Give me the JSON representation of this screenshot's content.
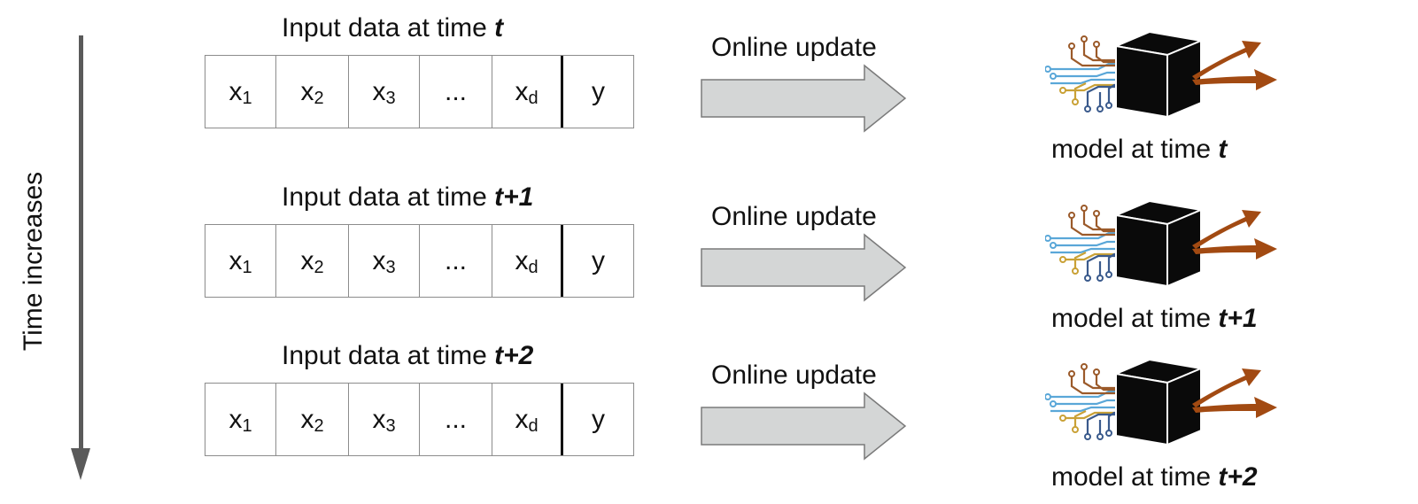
{
  "axis": {
    "label": "Time increases"
  },
  "rows": [
    {
      "title_prefix": "Input data at time ",
      "time": "t",
      "cells": [
        "x",
        "x",
        "x",
        "...",
        "x",
        "y"
      ],
      "subs": [
        "1",
        "2",
        "3",
        "",
        "d",
        ""
      ],
      "update_label": "Online update",
      "model_prefix": "model at time ",
      "model_time": "t"
    },
    {
      "title_prefix": "Input data at time ",
      "time": "t+1",
      "cells": [
        "x",
        "x",
        "x",
        "...",
        "x",
        "y"
      ],
      "subs": [
        "1",
        "2",
        "3",
        "",
        "d",
        ""
      ],
      "update_label": "Online update",
      "model_prefix": "model at time ",
      "model_time": "t+1"
    },
    {
      "title_prefix": "Input data at time ",
      "time": "t+2",
      "cells": [
        "x",
        "x",
        "x",
        "...",
        "x",
        "y"
      ],
      "subs": [
        "1",
        "2",
        "3",
        "",
        "d",
        ""
      ],
      "update_label": "Online update",
      "model_prefix": "model at time ",
      "model_time": "t+2"
    }
  ],
  "colors": {
    "arrow_fill": "#d4d6d6",
    "arrow_stroke": "#7a7a7a",
    "cube": "#0a0a0a",
    "output_arrows": "#a24a12",
    "circuit_blue": "#5aa7d8",
    "circuit_gold": "#c9a136",
    "circuit_brown": "#9b5a2a",
    "circuit_navy": "#3a5a8c"
  }
}
